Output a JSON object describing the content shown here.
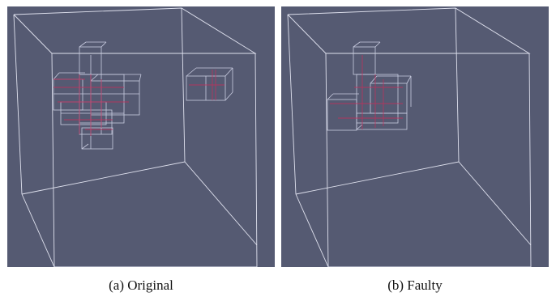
{
  "figure": {
    "background_color": "#555a72",
    "box_wire_color": "#dfe1ee",
    "block_wire_color": "#c9cce0",
    "inner_line_color": "#c0305c",
    "panels": [
      {
        "id": "a",
        "caption": "(a) Original"
      },
      {
        "id": "b",
        "caption": "(b) Faulty"
      }
    ]
  }
}
